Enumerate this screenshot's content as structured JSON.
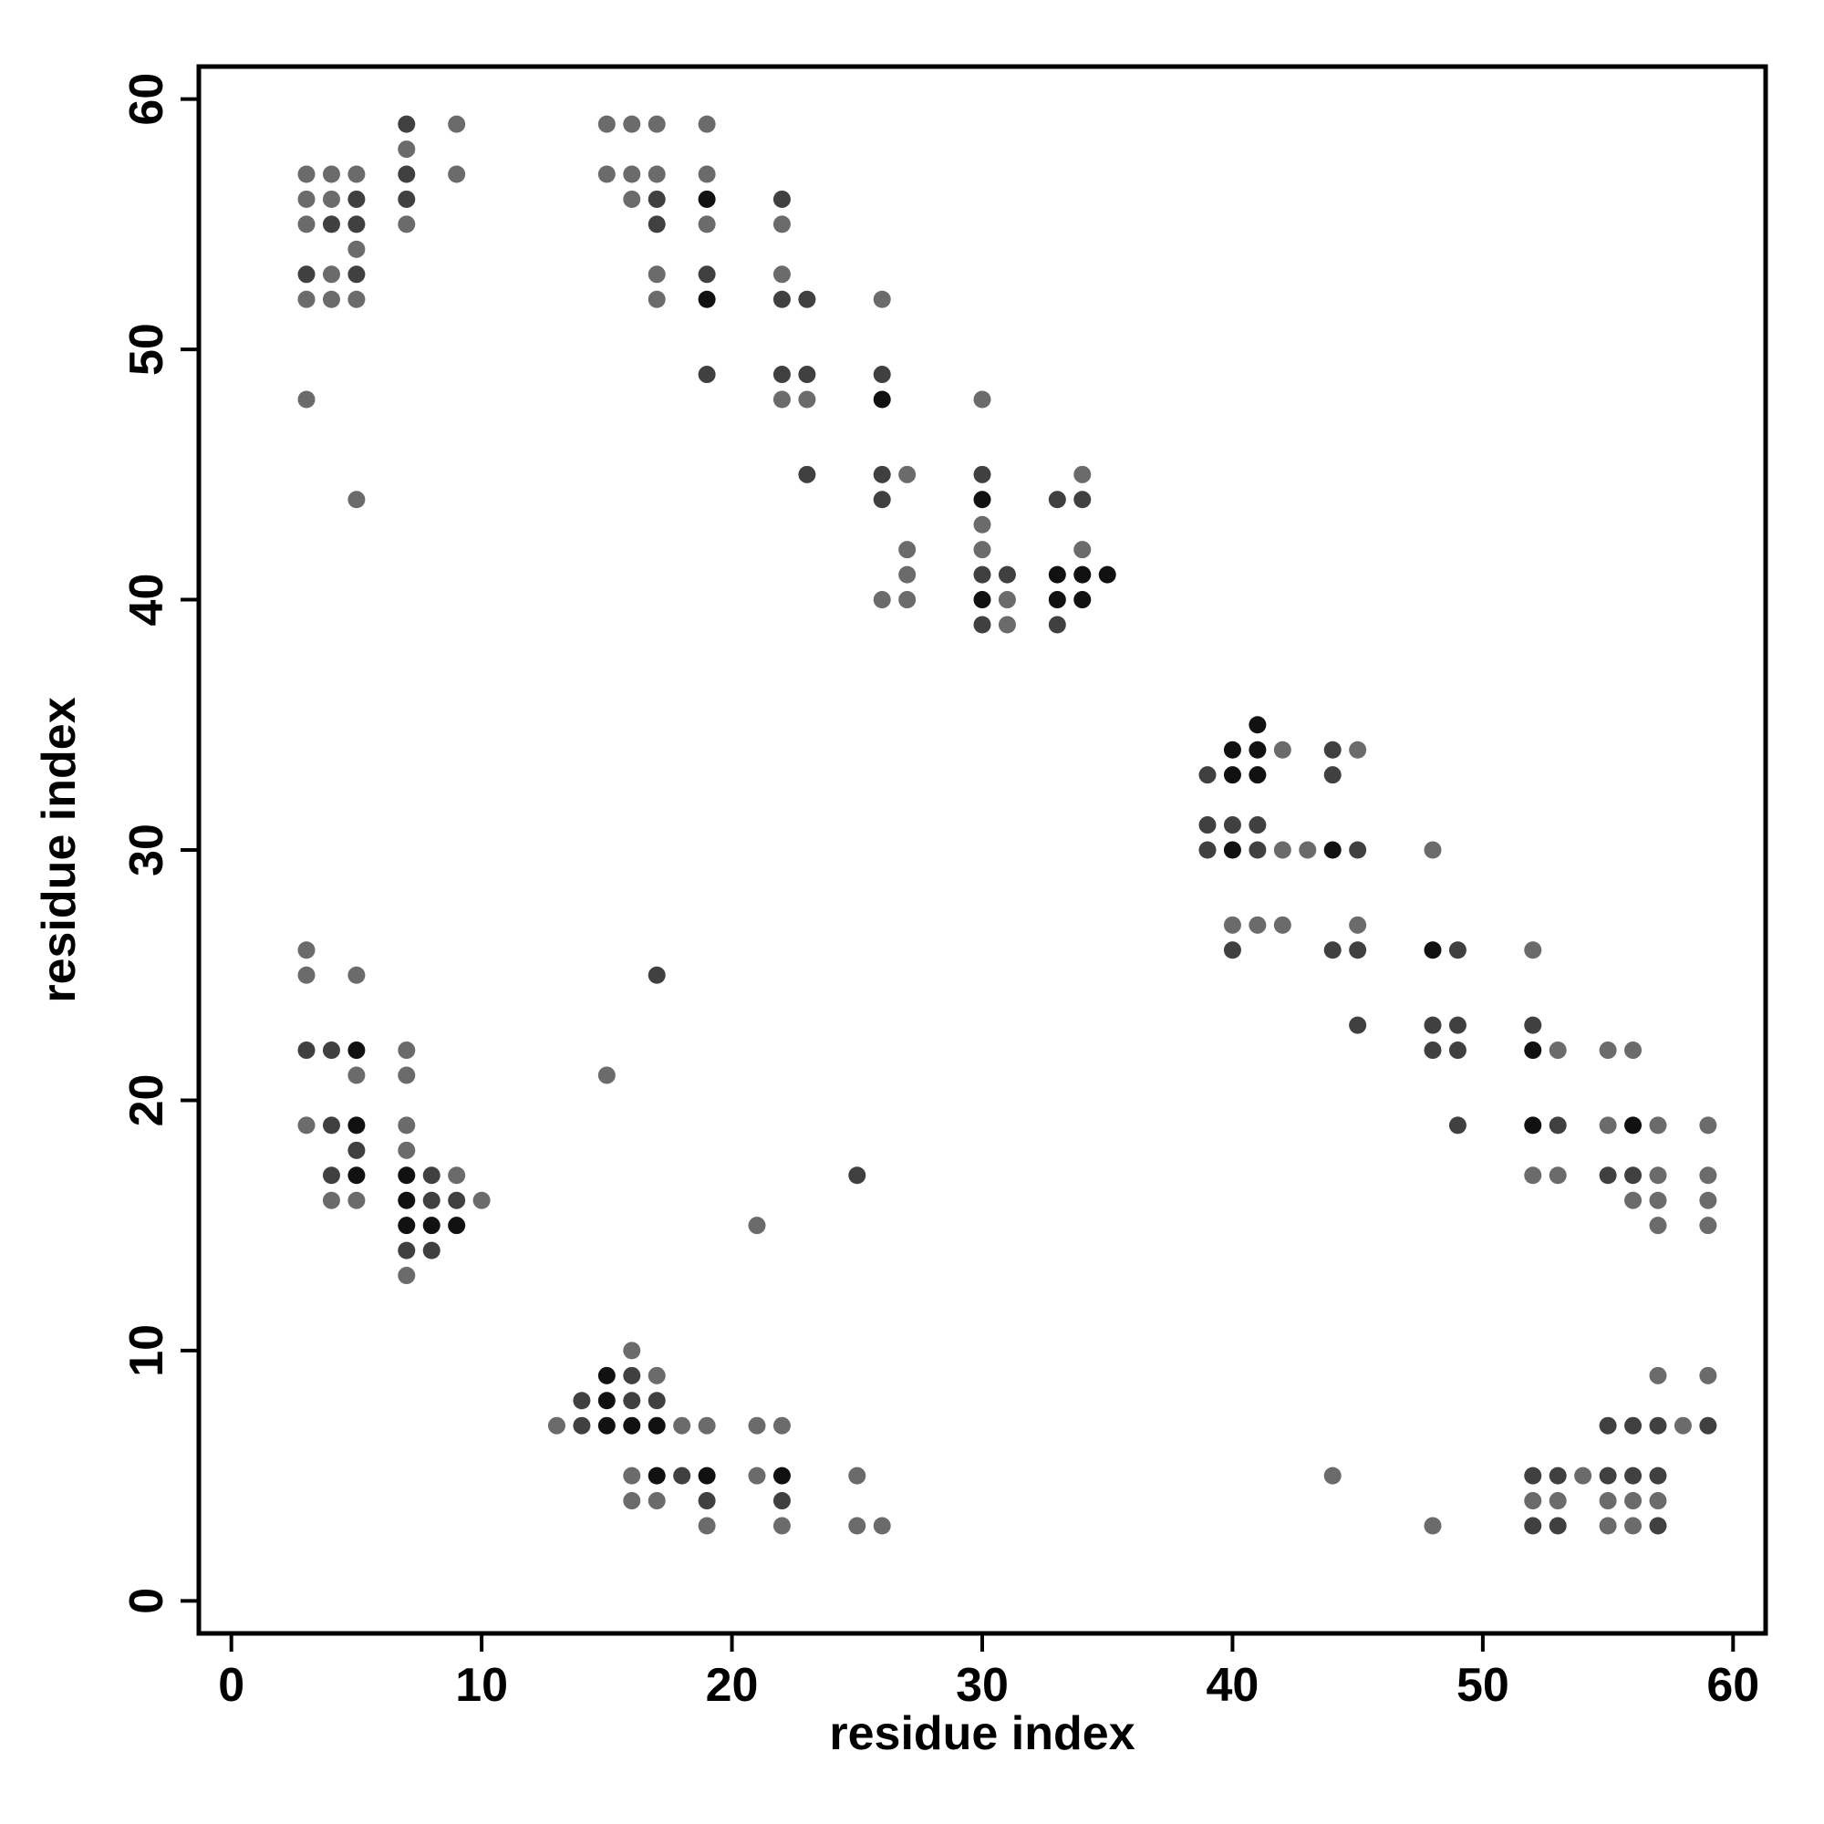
{
  "chart_data": {
    "type": "scatter",
    "xlabel": "residue index",
    "ylabel": "residue index",
    "xlim": [
      -1.3,
      61.3
    ],
    "ylim": [
      -1.3,
      61.3
    ],
    "xticks": [
      0,
      10,
      20,
      30,
      40,
      50,
      60
    ],
    "yticks": [
      0,
      10,
      20,
      30,
      40,
      50,
      60
    ],
    "series": [
      {
        "color": "#6b6b6b",
        "x": [
          3,
          3,
          3,
          3,
          3,
          3,
          3,
          3,
          4,
          4,
          4,
          4,
          4,
          5,
          5,
          5,
          5,
          5,
          5,
          5,
          7,
          7,
          7,
          7,
          7,
          7,
          7,
          9,
          9,
          9,
          10,
          13,
          15,
          15,
          15,
          16,
          16,
          16,
          16,
          16,
          16,
          17,
          17,
          17,
          17,
          17,
          17,
          18,
          19,
          19,
          19,
          19,
          19,
          21,
          21,
          21,
          22,
          22,
          22,
          22,
          22,
          23,
          25,
          25,
          26,
          26,
          26,
          27,
          27,
          27,
          27,
          30,
          30,
          30,
          31,
          31,
          34,
          34,
          40,
          41,
          42,
          42,
          42,
          43,
          44,
          45,
          45,
          48,
          48,
          52,
          52,
          52,
          53,
          53,
          53,
          54,
          55,
          55,
          55,
          55,
          56,
          56,
          56,
          56,
          57,
          57,
          57,
          57,
          57,
          57,
          58,
          59,
          59,
          59,
          59,
          59
        ],
        "values": [
          57,
          56,
          55,
          52,
          48,
          26,
          25,
          19,
          57,
          56,
          53,
          52,
          16,
          57,
          54,
          52,
          44,
          25,
          21,
          16,
          58,
          55,
          22,
          21,
          19,
          18,
          13,
          59,
          57,
          17,
          16,
          7,
          59,
          57,
          21,
          59,
          57,
          56,
          10,
          5,
          4,
          59,
          57,
          53,
          52,
          9,
          4,
          7,
          59,
          57,
          55,
          7,
          3,
          15,
          7,
          5,
          55,
          53,
          48,
          7,
          3,
          48,
          5,
          3,
          52,
          40,
          3,
          45,
          42,
          41,
          40,
          48,
          43,
          42,
          40,
          39,
          45,
          42,
          27,
          27,
          34,
          30,
          27,
          30,
          5,
          34,
          27,
          30,
          3,
          26,
          17,
          4,
          22,
          17,
          4,
          5,
          22,
          19,
          4,
          3,
          22,
          16,
          4,
          3,
          19,
          17,
          16,
          15,
          9,
          4,
          7,
          19,
          17,
          16,
          15,
          9
        ]
      },
      {
        "color": "#404040",
        "x": [
          3,
          3,
          4,
          4,
          4,
          4,
          5,
          5,
          5,
          5,
          7,
          7,
          7,
          7,
          8,
          8,
          8,
          9,
          14,
          14,
          16,
          16,
          17,
          17,
          17,
          17,
          18,
          19,
          19,
          19,
          22,
          22,
          22,
          22,
          23,
          23,
          23,
          25,
          26,
          26,
          26,
          30,
          30,
          30,
          31,
          33,
          33,
          34,
          39,
          39,
          39,
          40,
          40,
          41,
          41,
          44,
          44,
          44,
          45,
          45,
          45,
          48,
          48,
          49,
          49,
          49,
          49,
          52,
          52,
          52,
          53,
          53,
          53,
          55,
          55,
          55,
          56,
          56,
          56,
          57,
          57,
          57,
          59
        ],
        "values": [
          53,
          22,
          55,
          22,
          19,
          17,
          56,
          55,
          53,
          18,
          59,
          57,
          56,
          14,
          17,
          16,
          14,
          16,
          8,
          7,
          9,
          8,
          56,
          55,
          25,
          8,
          5,
          53,
          49,
          4,
          56,
          52,
          49,
          4,
          52,
          49,
          45,
          17,
          49,
          45,
          44,
          45,
          41,
          39,
          41,
          44,
          39,
          44,
          33,
          31,
          30,
          31,
          26,
          31,
          30,
          34,
          33,
          26,
          30,
          26,
          23,
          23,
          22,
          26,
          23,
          22,
          19,
          23,
          5,
          3,
          19,
          5,
          3,
          17,
          7,
          5,
          17,
          7,
          5,
          7,
          5,
          3,
          7
        ]
      },
      {
        "color": "#111111",
        "x": [
          5,
          5,
          5,
          7,
          7,
          7,
          8,
          9,
          15,
          15,
          15,
          16,
          17,
          17,
          19,
          19,
          19,
          22,
          26,
          30,
          30,
          33,
          33,
          34,
          34,
          35,
          40,
          40,
          40,
          41,
          41,
          41,
          44,
          48,
          52,
          52,
          56
        ],
        "values": [
          22,
          19,
          17,
          17,
          16,
          15,
          15,
          15,
          9,
          8,
          7,
          7,
          7,
          5,
          56,
          52,
          5,
          5,
          48,
          44,
          40,
          41,
          40,
          41,
          40,
          41,
          34,
          33,
          30,
          35,
          34,
          33,
          30,
          26,
          22,
          19,
          19
        ]
      }
    ]
  }
}
